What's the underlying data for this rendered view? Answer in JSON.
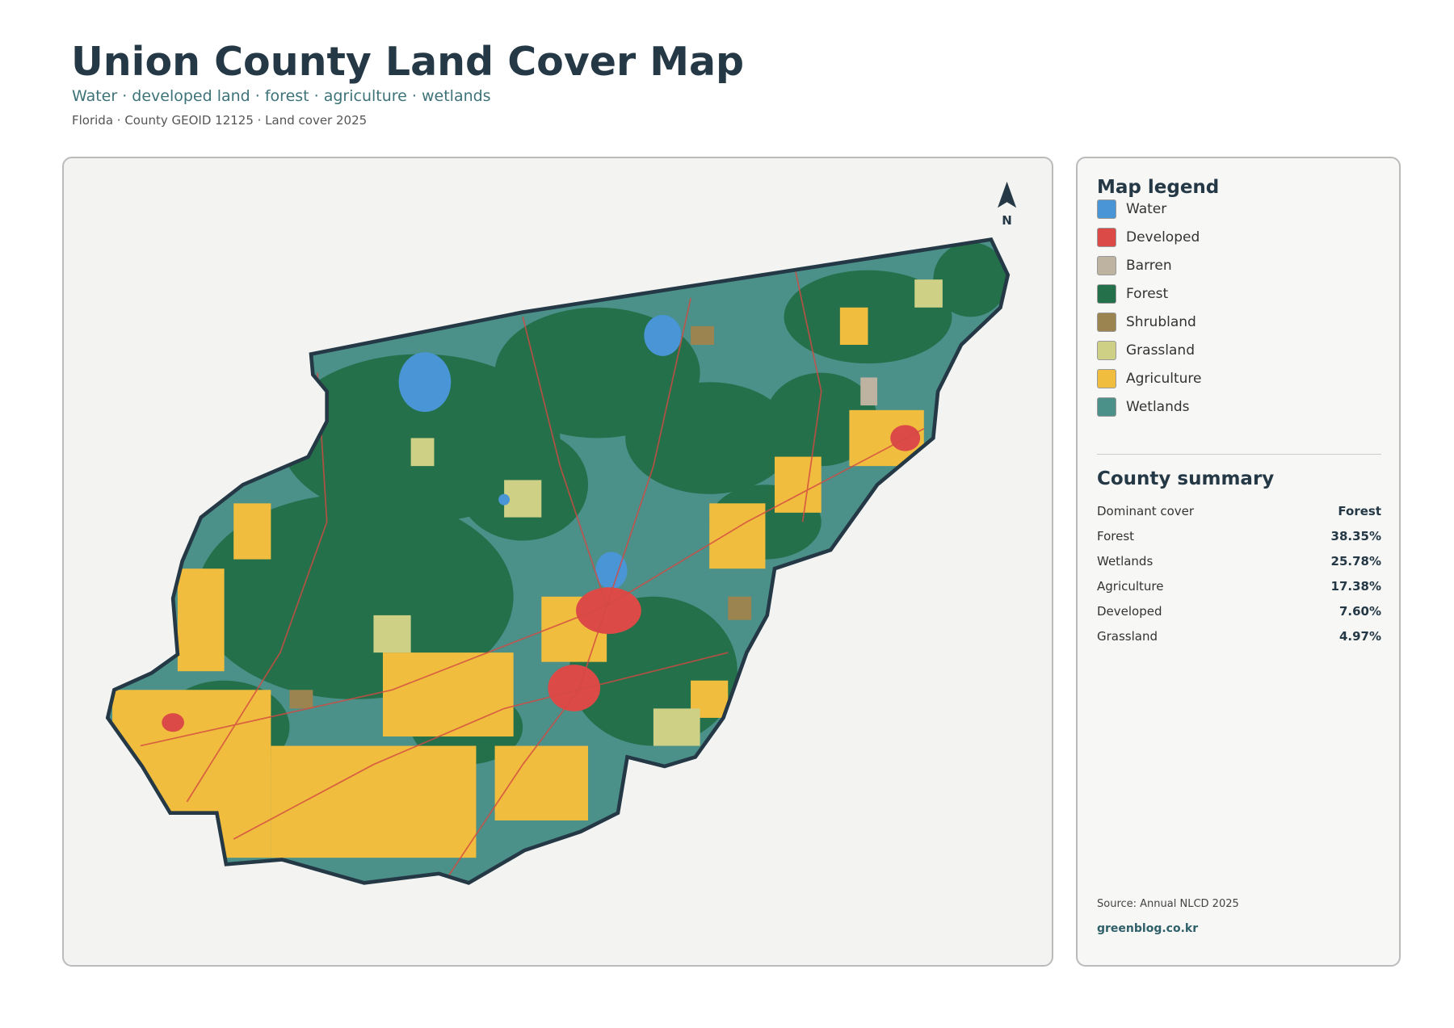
{
  "header": {
    "title": "Union County Land Cover Map",
    "subtitle": "Water · developed land · forest · agriculture · wetlands",
    "meta": "Florida · County GEOID 12125 · Land cover 2025"
  },
  "map": {
    "north_label": "N"
  },
  "legend": {
    "title": "Map legend",
    "items": [
      {
        "label": "Water",
        "color": "#4a95d6"
      },
      {
        "label": "Developed",
        "color": "#dc4a48"
      },
      {
        "label": "Barren",
        "color": "#bdb3a0"
      },
      {
        "label": "Forest",
        "color": "#24704a"
      },
      {
        "label": "Shrubland",
        "color": "#9c8450"
      },
      {
        "label": "Grassland",
        "color": "#cdd085"
      },
      {
        "label": "Agriculture",
        "color": "#f0bd3e"
      },
      {
        "label": "Wetlands",
        "color": "#4b9089"
      }
    ]
  },
  "summary": {
    "title": "County summary",
    "rows": [
      {
        "label": "Dominant cover",
        "value": "Forest"
      },
      {
        "label": "Forest",
        "value": "38.35%"
      },
      {
        "label": "Wetlands",
        "value": "25.78%"
      },
      {
        "label": "Agriculture",
        "value": "17.38%"
      },
      {
        "label": "Developed",
        "value": "7.60%"
      },
      {
        "label": "Grassland",
        "value": "4.97%"
      }
    ]
  },
  "footer": {
    "source": "Source: Annual NLCD 2025",
    "site": "greenblog.co.kr"
  }
}
